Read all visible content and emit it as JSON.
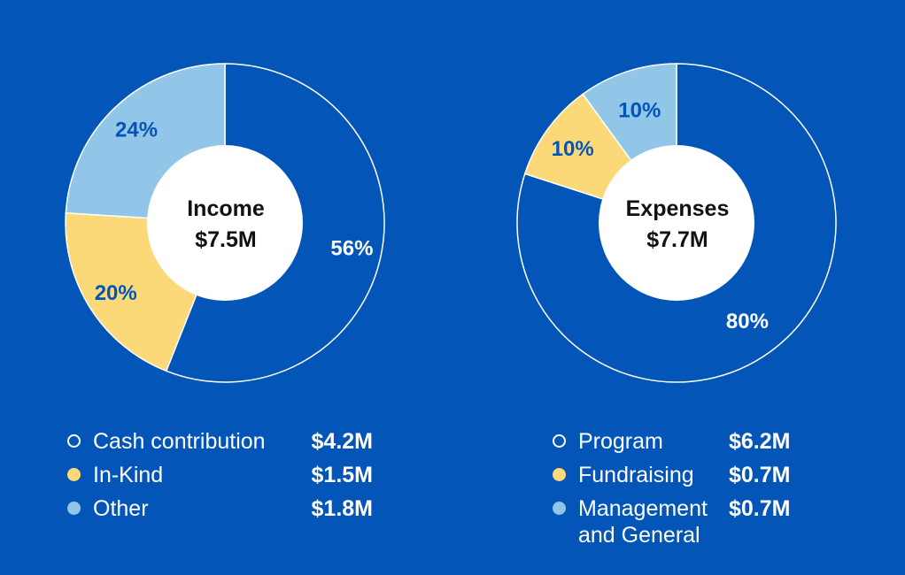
{
  "colors": {
    "background": "#0356b8",
    "primary_slice": "#0356b8",
    "in_kind_yellow": "#fbd979",
    "other_light_blue": "#91c6e8",
    "label_blue": "#0356b8",
    "white": "#ffffff"
  },
  "chart_data": [
    {
      "type": "pie",
      "title": "Income",
      "total": "$7.5M",
      "slices": [
        {
          "label": "Cash contribution",
          "amount": "$4.2M",
          "value": 56,
          "pct_label": "56%",
          "color": "#0356b8"
        },
        {
          "label": "In-Kind",
          "amount": "$1.5M",
          "value": 20,
          "pct_label": "20%",
          "color": "#fbd979"
        },
        {
          "label": "Other",
          "amount": "$1.8M",
          "value": 24,
          "pct_label": "24%",
          "color": "#91c6e8"
        }
      ]
    },
    {
      "type": "pie",
      "title": "Expenses",
      "total": "$7.7M",
      "slices": [
        {
          "label": "Program",
          "amount": "$6.2M",
          "value": 80,
          "pct_label": "80%",
          "color": "#0356b8"
        },
        {
          "label": "Fundraising",
          "amount": "$0.7M",
          "value": 10,
          "pct_label": "10%",
          "color": "#fbd979"
        },
        {
          "label": "Management and General",
          "amount": "$0.7M",
          "value": 10,
          "pct_label": "10%",
          "color": "#91c6e8"
        }
      ]
    }
  ]
}
